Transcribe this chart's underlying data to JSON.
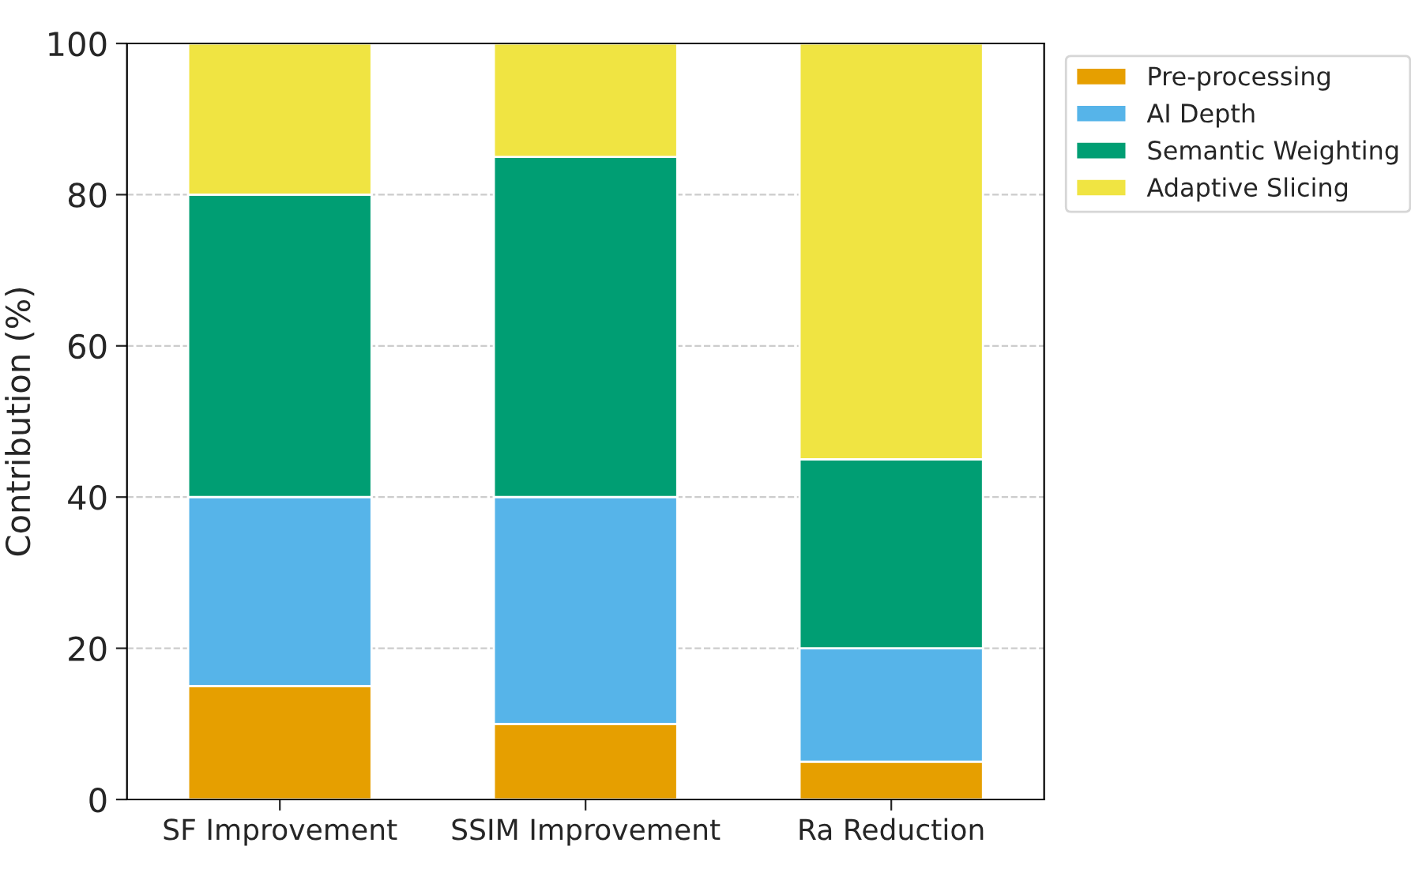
{
  "chart_data": {
    "type": "bar",
    "stacked": true,
    "ylabel": "Contribution (%)",
    "categories": [
      "SF Improvement",
      "SSIM Improvement",
      "Ra Reduction"
    ],
    "series": [
      {
        "name": "Pre-processing",
        "color": "#e69f00",
        "values": [
          15,
          10,
          5
        ]
      },
      {
        "name": "AI Depth",
        "color": "#56b4e9",
        "values": [
          25,
          30,
          15
        ]
      },
      {
        "name": "Semantic Weighting",
        "color": "#009e73",
        "values": [
          40,
          45,
          25
        ]
      },
      {
        "name": "Adaptive Slicing",
        "color": "#f0e442",
        "values": [
          20,
          15,
          55
        ]
      }
    ],
    "ylim": [
      0,
      100
    ],
    "yticks": [
      0,
      20,
      40,
      60,
      80,
      100
    ],
    "grid": true,
    "legend": "top right"
  }
}
